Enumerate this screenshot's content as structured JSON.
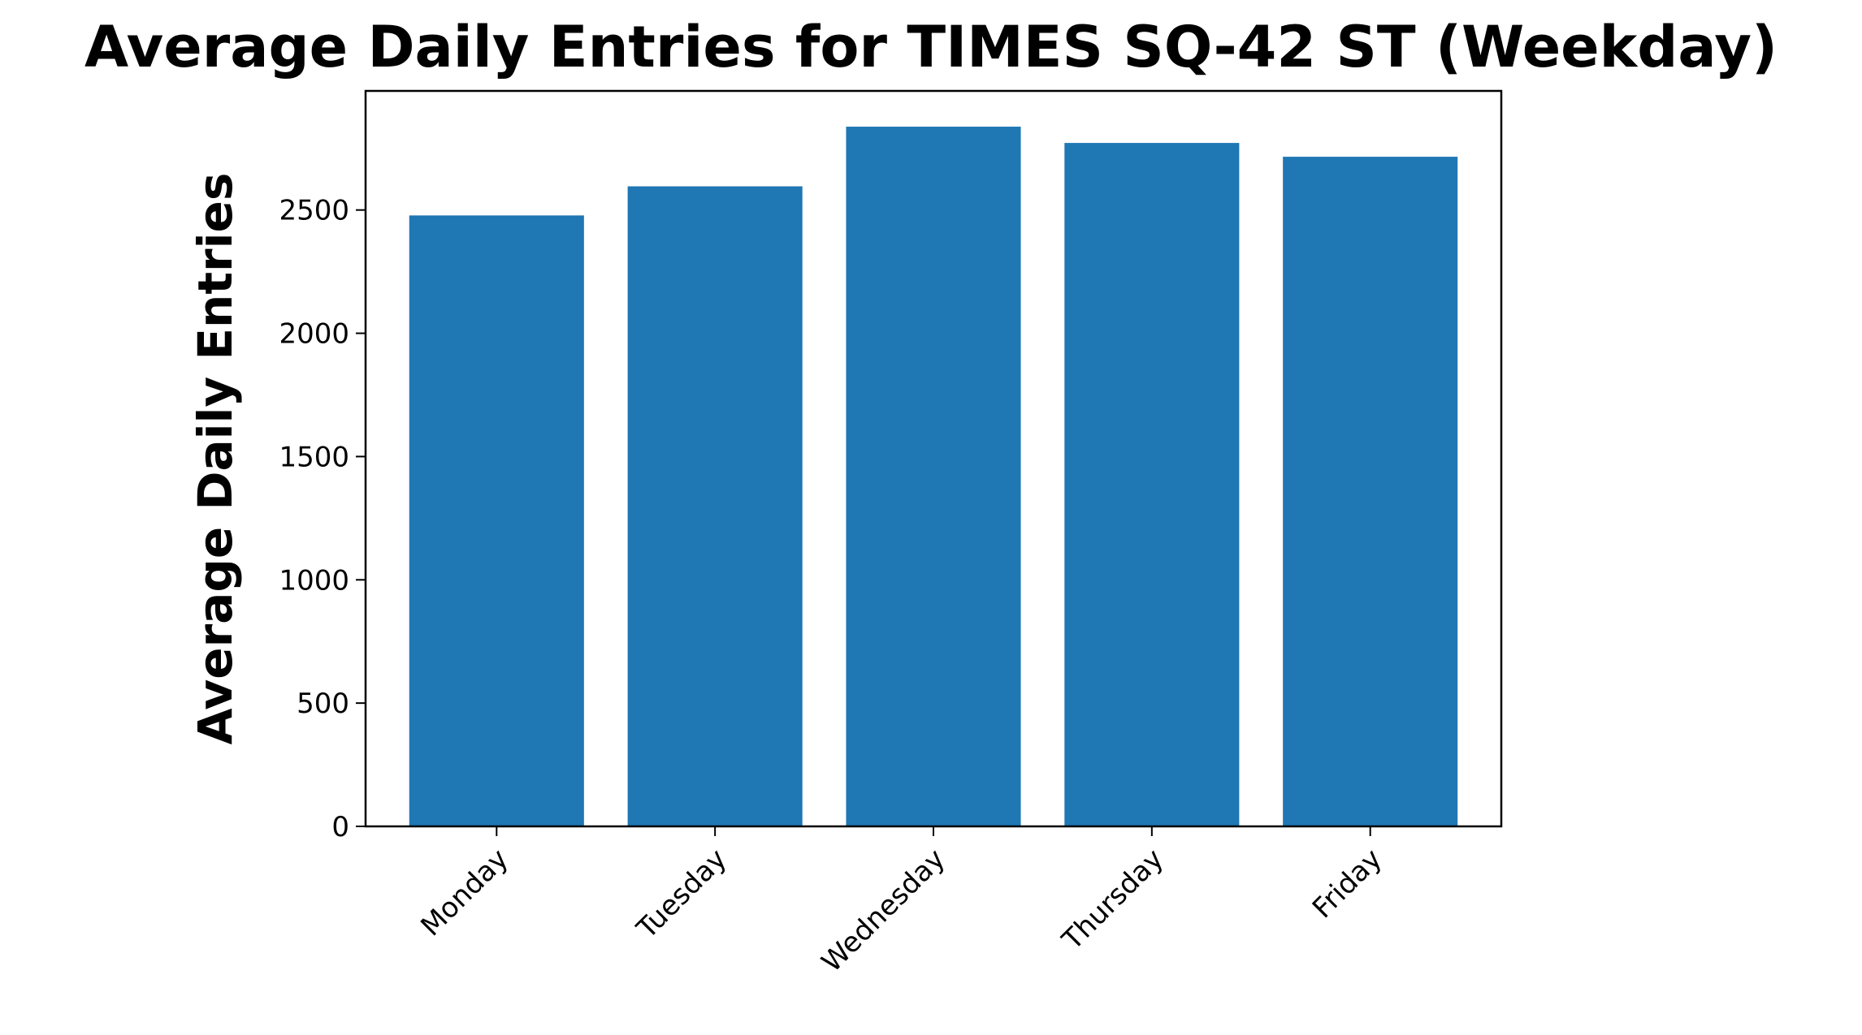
{
  "chart_data": {
    "type": "bar",
    "title": "Average Daily Entries for TIMES SQ-42 ST (Weekday)",
    "xlabel": "",
    "ylabel": "Average Daily Entries",
    "categories": [
      "Monday",
      "Tuesday",
      "Wednesday",
      "Thursday",
      "Friday"
    ],
    "values": [
      2478,
      2596,
      2838,
      2772,
      2716
    ],
    "ylim": [
      0,
      2983
    ],
    "yticks": [
      0,
      500,
      1000,
      1500,
      2000,
      2500
    ],
    "ytick_labels": [
      "0",
      "500",
      "1000",
      "1500",
      "2000",
      "2500"
    ],
    "grid": false,
    "bar_color": "#1f77b4"
  }
}
